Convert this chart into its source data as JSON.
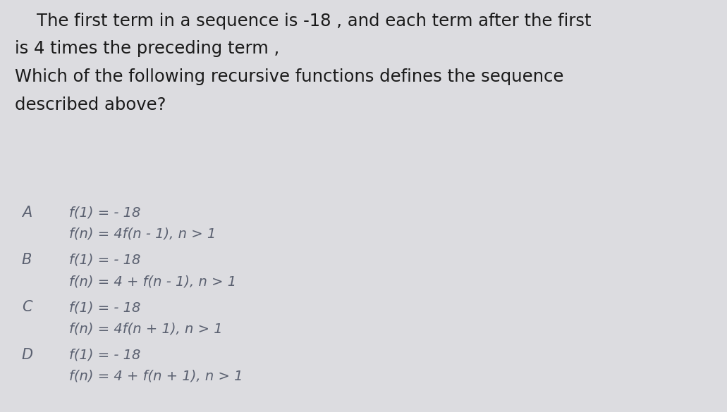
{
  "bg_color": "#dcdce0",
  "text_color_title": "#1a1a1a",
  "text_color_options": "#5a6070",
  "title_lines": [
    "    The first term in a sequence is -18 , and each term after the first",
    "is 4 times the preceding term ,",
    "Which of the following recursive functions defines the sequence",
    "described above?"
  ],
  "options": [
    {
      "label": "A",
      "line1": "f(1) = - 18",
      "line2": "f(n) = 4f(n - 1), n > 1"
    },
    {
      "label": "B",
      "line1": "f(1) = - 18",
      "line2": "f(n) = 4 + f(n - 1), n > 1"
    },
    {
      "label": "C",
      "line1": "f(1) = - 18",
      "line2": "f(n) = 4f(n + 1), n > 1"
    },
    {
      "label": "D",
      "line1": "f(1) = - 18",
      "line2": "f(n) = 4 + f(n + 1), n > 1"
    }
  ],
  "title_fontsize": 17.5,
  "option_label_fontsize": 15,
  "option_text_fontsize": 14,
  "fig_width": 10.31,
  "fig_height": 5.85
}
